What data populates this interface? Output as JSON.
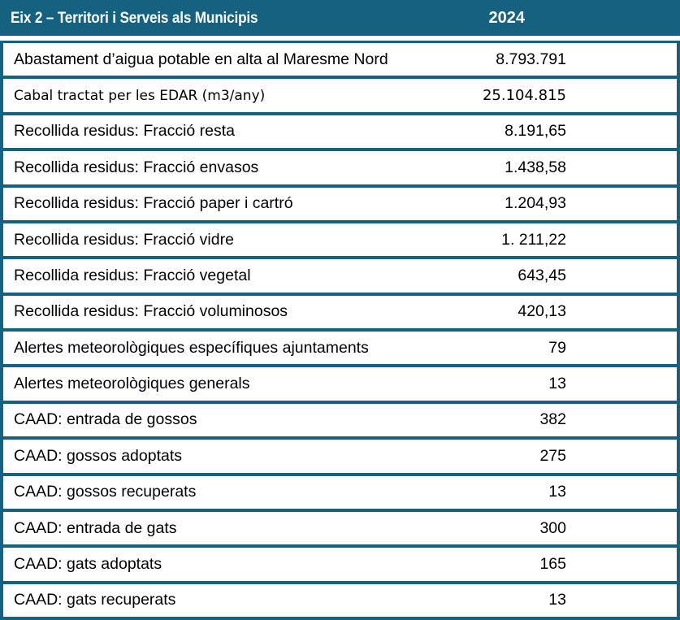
{
  "colors": {
    "accent": "#156180",
    "header_text": "#FFFFFF",
    "body_text": "#000000",
    "row_background": "#FFFFFF"
  },
  "table": {
    "header": {
      "title": "Eix 2 – Territori i Serveis als Municipis",
      "year": "2024"
    },
    "rows": [
      {
        "label": "Abastament d’aigua potable en alta al Maresme Nord",
        "value": "8.793.791"
      },
      {
        "label": "Cabal tractat per les EDAR (m3/any)",
        "value": "25.104.815"
      },
      {
        "label": "Recollida residus: Fracció resta",
        "value": "8.191,65"
      },
      {
        "label": "Recollida residus: Fracció envasos",
        "value": "1.438,58"
      },
      {
        "label": "Recollida residus: Fracció paper i cartró",
        "value": "1.204,93"
      },
      {
        "label": "Recollida residus: Fracció vidre",
        "value": "1. 211,22"
      },
      {
        "label": "Recollida residus: Fracció vegetal",
        "value": "643,45"
      },
      {
        "label": "Recollida residus: Fracció voluminosos",
        "value": "420,13"
      },
      {
        "label": "Alertes meteorològiques específiques ajuntaments",
        "value": "79"
      },
      {
        "label": "Alertes meteorològiques generals",
        "value": "13"
      },
      {
        "label": "CAAD: entrada de gossos",
        "value": "382"
      },
      {
        "label": "CAAD: gossos adoptats",
        "value": "275"
      },
      {
        "label": "CAAD: gossos recuperats",
        "value": "13"
      },
      {
        "label": "CAAD: entrada de gats",
        "value": "300"
      },
      {
        "label": "CAAD: gats adoptats",
        "value": "165"
      },
      {
        "label": "CAAD: gats recuperats",
        "value": "13"
      }
    ]
  }
}
